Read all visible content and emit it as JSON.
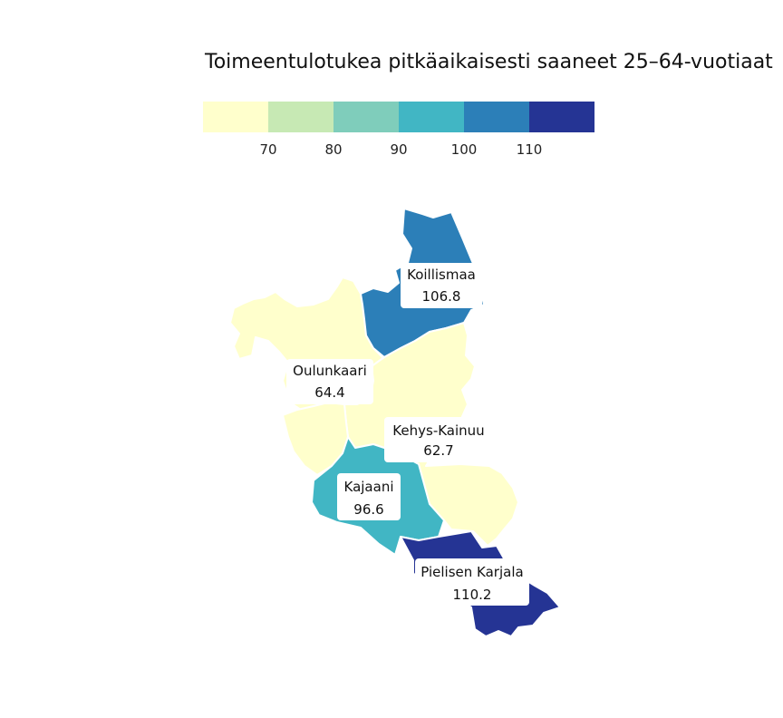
{
  "title": "Toimeentulotukea pitkäaikaisesti saaneet 25–64-vuotiaat",
  "legend": {
    "colors": [
      "#ffffcc",
      "#c7e9b4",
      "#7fcdbb",
      "#41b6c4",
      "#2c7fb8",
      "#253494"
    ],
    "tick_labels": [
      "70",
      "80",
      "90",
      "100",
      "110"
    ]
  },
  "regions": [
    {
      "name": "Koillismaa",
      "value": "106.8",
      "color": "#2c7fb8"
    },
    {
      "name": "Oulunkaari",
      "value": "64.4",
      "color": "#ffffcc"
    },
    {
      "name": "Kehys-Kainuu",
      "value": "62.7",
      "color": "#ffffcc"
    },
    {
      "name": "Kajaani",
      "value": "96.6",
      "color": "#41b6c4"
    },
    {
      "name": "Pielisen Karjala",
      "value": "110.2",
      "color": "#253494"
    }
  ]
}
